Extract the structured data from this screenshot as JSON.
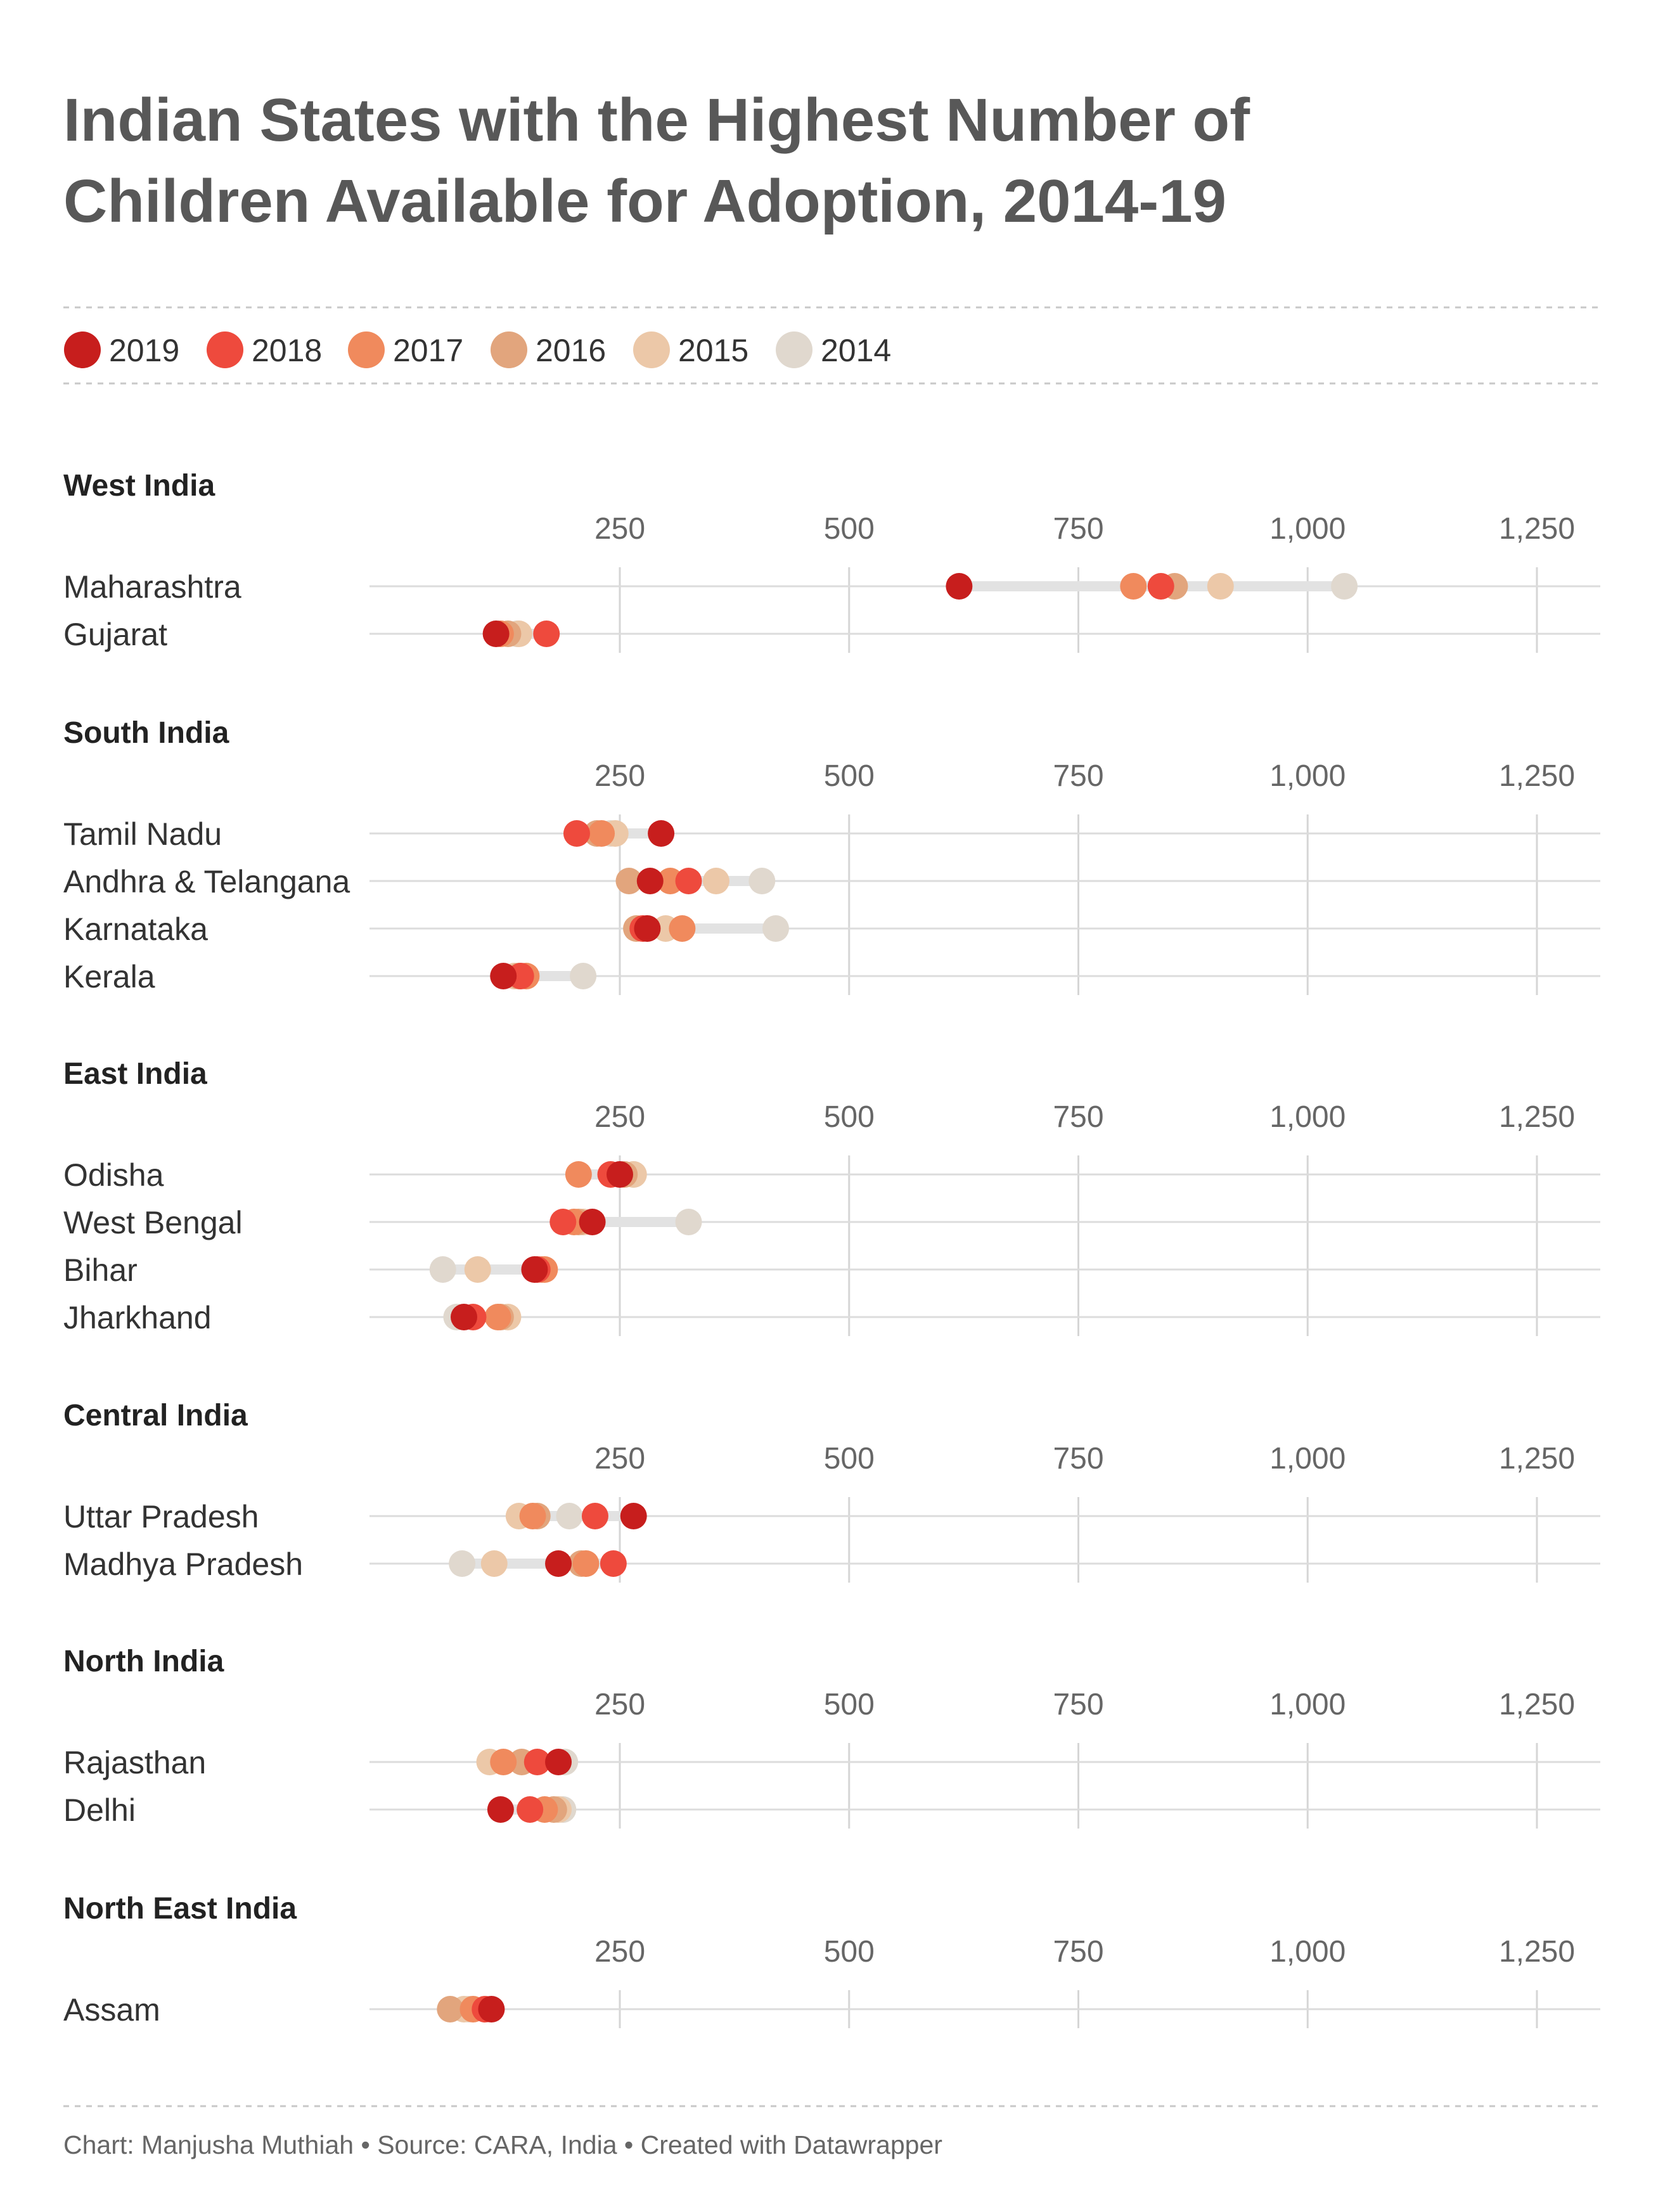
{
  "title": [
    "Indian States with the Highest Number of",
    "Children Available for Adoption, 2014-19"
  ],
  "footer": "Chart: Manjusha Muthiah • Source: CARA, India • Created with Datawrapper",
  "colors": {
    "2019": "#c71e1d",
    "2018": "#ee4a3d",
    "2017": "#f08a5d",
    "2016": "#e2a57d",
    "2015": "#ecc8a8",
    "2014": "#e0d8ce"
  },
  "chart_data": {
    "type": "dot-range",
    "years": [
      "2019",
      "2018",
      "2017",
      "2016",
      "2015",
      "2014"
    ],
    "x_ticks": [
      250,
      500,
      750,
      1000,
      1250
    ],
    "x_tick_labels": [
      "250",
      "500",
      "750",
      "1,000",
      "1,250"
    ],
    "xlim": [
      -20,
      1265
    ],
    "groups": [
      {
        "name": "West India",
        "rows": [
          {
            "label": "Maharashtra",
            "values": {
              "2019": 620,
              "2018": 840,
              "2017": 810,
              "2016": 855,
              "2015": 905,
              "2014": 1040
            }
          },
          {
            "label": "Gujarat",
            "values": {
              "2019": 115,
              "2018": 170,
              "2017": 120,
              "2016": 128,
              "2015": 140,
              "2014": 138
            }
          }
        ]
      },
      {
        "name": "South India",
        "rows": [
          {
            "label": "Tamil Nadu",
            "values": {
              "2019": 295,
              "2018": 203,
              "2017": 230,
              "2016": 225,
              "2015": 245,
              "2014": 240
            }
          },
          {
            "label": "Andhra & Telangana",
            "values": {
              "2019": 283,
              "2018": 325,
              "2017": 305,
              "2016": 260,
              "2015": 355,
              "2014": 405
            }
          },
          {
            "label": "Karnataka",
            "values": {
              "2019": 280,
              "2018": 275,
              "2017": 318,
              "2016": 268,
              "2015": 300,
              "2014": 420
            }
          },
          {
            "label": "Kerala",
            "values": {
              "2019": 123,
              "2018": 142,
              "2017": 148,
              "2016": 140,
              "2015": 135,
              "2014": 210
            }
          }
        ]
      },
      {
        "name": "East India",
        "rows": [
          {
            "label": "Odisha",
            "values": {
              "2019": 250,
              "2018": 240,
              "2017": 205,
              "2016": 255,
              "2015": 265,
              "2014": 265
            }
          },
          {
            "label": "West Bengal",
            "values": {
              "2019": 220,
              "2018": 188,
              "2017": 200,
              "2016": 205,
              "2015": 210,
              "2014": 325
            }
          },
          {
            "label": "Bihar",
            "values": {
              "2019": 157,
              "2018": 160,
              "2017": 168,
              "2016": 165,
              "2015": 95,
              "2014": 57
            }
          },
          {
            "label": "Jharkhand",
            "values": {
              "2019": 80,
              "2018": 90,
              "2017": 117,
              "2016": 120,
              "2015": 128,
              "2014": 72
            }
          }
        ]
      },
      {
        "name": "Central India",
        "rows": [
          {
            "label": "Uttar Pradesh",
            "values": {
              "2019": 265,
              "2018": 223,
              "2017": 155,
              "2016": 160,
              "2015": 140,
              "2014": 195
            }
          },
          {
            "label": "Madhya Pradesh",
            "values": {
              "2019": 183,
              "2018": 243,
              "2017": 213,
              "2016": 208,
              "2015": 113,
              "2014": 78
            }
          }
        ]
      },
      {
        "name": "North India",
        "rows": [
          {
            "label": "Rajasthan",
            "values": {
              "2019": 183,
              "2018": 160,
              "2017": 123,
              "2016": 143,
              "2015": 108,
              "2014": 190
            }
          },
          {
            "label": "Delhi",
            "values": {
              "2019": 120,
              "2018": 152,
              "2017": 168,
              "2016": 178,
              "2015": 183,
              "2014": 188
            }
          }
        ]
      },
      {
        "name": "North East India",
        "rows": [
          {
            "label": "Assam",
            "values": {
              "2019": 110,
              "2018": 103,
              "2017": 90,
              "2016": 65,
              "2015": 80,
              "2014": 85
            }
          }
        ]
      }
    ]
  }
}
